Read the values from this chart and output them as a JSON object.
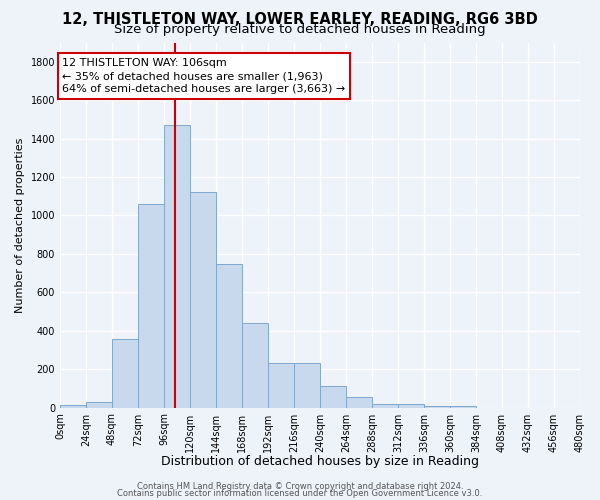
{
  "title": "12, THISTLETON WAY, LOWER EARLEY, READING, RG6 3BD",
  "subtitle": "Size of property relative to detached houses in Reading",
  "xlabel": "Distribution of detached houses by size in Reading",
  "ylabel": "Number of detached properties",
  "bin_edges": [
    0,
    24,
    48,
    72,
    96,
    120,
    144,
    168,
    192,
    216,
    240,
    264,
    288,
    312,
    336,
    360,
    384,
    408,
    432,
    456,
    480
  ],
  "bar_heights": [
    15,
    30,
    355,
    1060,
    1470,
    1120,
    745,
    440,
    230,
    230,
    110,
    55,
    20,
    20,
    10,
    10,
    0,
    0,
    0,
    0
  ],
  "bar_color": "#c9d9ed",
  "bar_edge_color": "#7fa8cc",
  "vline_x": 106,
  "vline_color": "#cc0000",
  "ylim": [
    0,
    1900
  ],
  "yticks": [
    0,
    200,
    400,
    600,
    800,
    1000,
    1200,
    1400,
    1600,
    1800
  ],
  "xtick_labels": [
    "0sqm",
    "24sqm",
    "48sqm",
    "72sqm",
    "96sqm",
    "120sqm",
    "144sqm",
    "168sqm",
    "192sqm",
    "216sqm",
    "240sqm",
    "264sqm",
    "288sqm",
    "312sqm",
    "336sqm",
    "360sqm",
    "384sqm",
    "408sqm",
    "432sqm",
    "456sqm",
    "480sqm"
  ],
  "annotation_title": "12 THISTLETON WAY: 106sqm",
  "annotation_line1": "← 35% of detached houses are smaller (1,963)",
  "annotation_line2": "64% of semi-detached houses are larger (3,663) →",
  "annotation_box_color": "#ffffff",
  "annotation_box_edge_color": "#cc0000",
  "footer_line1": "Contains HM Land Registry data © Crown copyright and database right 2024.",
  "footer_line2": "Contains public sector information licensed under the Open Government Licence v3.0.",
  "background_color": "#eef2f9",
  "grid_color": "#ffffff",
  "title_fontsize": 10.5,
  "subtitle_fontsize": 9.5,
  "xlabel_fontsize": 9,
  "ylabel_fontsize": 8,
  "tick_fontsize": 7,
  "footer_fontsize": 6,
  "ann_fontsize": 8
}
